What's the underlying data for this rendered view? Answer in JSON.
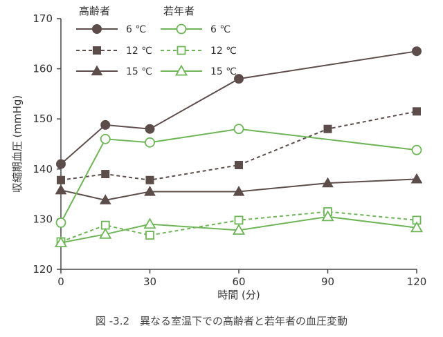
{
  "chart_data": {
    "type": "line",
    "title": "",
    "caption": "図 -3.2　異なる室温下での高齢者と若年者の血圧変動",
    "xlabel": "時間 (分)",
    "ylabel": "収縮期血圧 (mmHg)",
    "xlim": [
      0,
      120
    ],
    "ylim": [
      120,
      170
    ],
    "x_ticks": [
      0,
      30,
      60,
      90,
      120
    ],
    "y_ticks": [
      120,
      130,
      140,
      150,
      160,
      170
    ],
    "grid": false,
    "legend_placement": "top-left",
    "legend_groups": [
      {
        "title": "高齢者",
        "color": "#5c4d4a"
      },
      {
        "title": "若年者",
        "color": "#6db556"
      }
    ],
    "series": [
      {
        "name": "6 ℃",
        "group": "高齢者",
        "color": "#5c4d4a",
        "marker": "circle-filled",
        "dash": "solid",
        "x": [
          0,
          15,
          30,
          60,
          120
        ],
        "y": [
          141,
          148.8,
          148,
          158,
          163.5
        ]
      },
      {
        "name": "12 ℃",
        "group": "高齢者",
        "color": "#5c4d4a",
        "marker": "square-filled",
        "dash": "dashed",
        "x": [
          0,
          15,
          30,
          60,
          90,
          120
        ],
        "y": [
          137.8,
          139,
          137.8,
          140.8,
          148,
          151.5
        ]
      },
      {
        "name": "15 ℃",
        "group": "高齢者",
        "color": "#5c4d4a",
        "marker": "triangle-filled",
        "dash": "solid",
        "x": [
          0,
          15,
          30,
          60,
          90,
          120
        ],
        "y": [
          135.8,
          133.8,
          135.5,
          135.5,
          137.2,
          138
        ]
      },
      {
        "name": "6 ℃",
        "group": "若年者",
        "color": "#6db556",
        "marker": "circle-open",
        "dash": "solid",
        "x": [
          0,
          15,
          30,
          60,
          120
        ],
        "y": [
          129.3,
          146,
          145.3,
          148,
          143.8
        ]
      },
      {
        "name": "12 ℃",
        "group": "若年者",
        "color": "#6db556",
        "marker": "square-open",
        "dash": "dashed",
        "x": [
          0,
          15,
          30,
          60,
          90,
          120
        ],
        "y": [
          125.5,
          128.8,
          126.8,
          129.8,
          131.5,
          129.8
        ]
      },
      {
        "name": "15 ℃",
        "group": "若年者",
        "color": "#6db556",
        "marker": "triangle-open",
        "dash": "solid",
        "x": [
          0,
          15,
          30,
          60,
          90,
          120
        ],
        "y": [
          125.3,
          127,
          129,
          127.8,
          130.5,
          128.3
        ]
      }
    ]
  }
}
